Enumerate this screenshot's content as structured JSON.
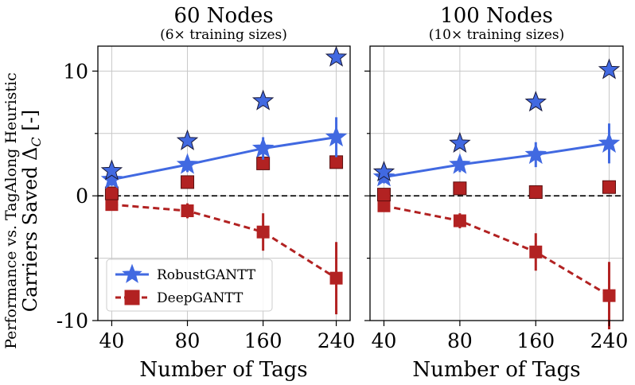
{
  "chart_data": [
    {
      "type": "line",
      "title": "60 Nodes",
      "subtitle": "(6× training sizes)",
      "xlabel": "Number of Tags",
      "ylabel_line1": "Performance vs. TagAlong Heuristic",
      "ylabel_line2": "Carriers Saved Δ",
      "ylabel_sub": "C",
      "ylabel_unit": " [-]",
      "categories": [
        "40",
        "80",
        "160",
        "240"
      ],
      "ylim": [
        -10,
        12
      ],
      "yticks": [
        "10",
        "0",
        "-10"
      ],
      "yticks_values": [
        10,
        0,
        -10
      ],
      "grid": true,
      "reference_line": 0,
      "legend": {
        "position": "lower-left",
        "entries": [
          "RobustGANTT",
          "DeepGANTT"
        ]
      },
      "series": [
        {
          "name": "RobustGANTT",
          "style": "solid-star",
          "color": "#4169e1",
          "values": [
            1.3,
            2.5,
            3.8,
            4.7
          ],
          "err": [
            0.5,
            0.6,
            0.9,
            1.6
          ]
        },
        {
          "name": "DeepGANTT",
          "style": "dashed-square",
          "color": "#b22222",
          "values": [
            -0.7,
            -1.2,
            -2.9,
            -6.6
          ],
          "err": [
            0.4,
            0.6,
            1.5,
            2.9
          ]
        }
      ],
      "extra_points": [
        {
          "name": "RobustGANTT max",
          "marker": "star",
          "values": [
            2.0,
            4.4,
            7.6,
            11.1
          ]
        },
        {
          "name": "DeepGANTT max",
          "marker": "square",
          "values": [
            0.2,
            1.1,
            2.6,
            2.7
          ]
        }
      ]
    },
    {
      "type": "line",
      "title": "100 Nodes",
      "subtitle": "(10× training sizes)",
      "xlabel": "Number of Tags",
      "categories": [
        "40",
        "80",
        "160",
        "240"
      ],
      "ylim": [
        -10,
        12
      ],
      "grid": true,
      "reference_line": 0,
      "series": [
        {
          "name": "RobustGANTT",
          "style": "solid-star",
          "color": "#4169e1",
          "values": [
            1.5,
            2.5,
            3.3,
            4.2
          ],
          "err": [
            0.5,
            0.6,
            1.0,
            1.6
          ]
        },
        {
          "name": "DeepGANTT",
          "style": "dashed-square",
          "color": "#b22222",
          "values": [
            -0.8,
            -2.0,
            -4.5,
            -8.0
          ],
          "err": [
            0.4,
            0.6,
            1.5,
            2.7
          ]
        }
      ],
      "extra_points": [
        {
          "name": "RobustGANTT max",
          "marker": "star",
          "values": [
            1.9,
            4.2,
            7.5,
            10.1
          ]
        },
        {
          "name": "DeepGANTT max",
          "marker": "square",
          "values": [
            0.1,
            0.6,
            0.3,
            0.7
          ]
        }
      ]
    }
  ]
}
